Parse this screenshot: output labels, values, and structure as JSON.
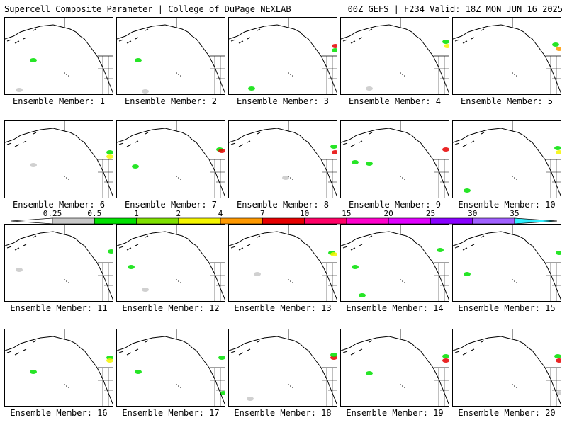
{
  "header": {
    "left_title": "Supercell Composite Parameter | College of DuPage NEXLAB",
    "right_title": "00Z GEFS | F234 Valid: 18Z MON JUN 16 2025"
  },
  "members": [
    {
      "label": "Ensemble Member: 1"
    },
    {
      "label": "Ensemble Member: 2"
    },
    {
      "label": "Ensemble Member: 3"
    },
    {
      "label": "Ensemble Member: 4"
    },
    {
      "label": "Ensemble Member: 5"
    },
    {
      "label": "Ensemble Member: 6"
    },
    {
      "label": "Ensemble Member: 7"
    },
    {
      "label": "Ensemble Member: 8"
    },
    {
      "label": "Ensemble Member: 9"
    },
    {
      "label": "Ensemble Member: 10"
    },
    {
      "label": "Ensemble Member: 11"
    },
    {
      "label": "Ensemble Member: 12"
    },
    {
      "label": "Ensemble Member: 13"
    },
    {
      "label": "Ensemble Member: 14"
    },
    {
      "label": "Ensemble Member: 15"
    },
    {
      "label": "Ensemble Member: 16"
    },
    {
      "label": "Ensemble Member: 17"
    },
    {
      "label": "Ensemble Member: 18"
    },
    {
      "label": "Ensemble Member: 19"
    },
    {
      "label": "Ensemble Member: 20"
    }
  ],
  "legend": {
    "ticks": [
      "0.25",
      "0.5",
      "1",
      "2",
      "4",
      "7",
      "10",
      "15",
      "20",
      "25",
      "30",
      "35"
    ],
    "colors": [
      "#c8c8c8",
      "#00e000",
      "#7fe000",
      "#f5f500",
      "#ff9900",
      "#e60000",
      "#ff0066",
      "#ff00cc",
      "#e000ff",
      "#8800ff",
      "#a060ff",
      "#30f0ff"
    ]
  }
}
